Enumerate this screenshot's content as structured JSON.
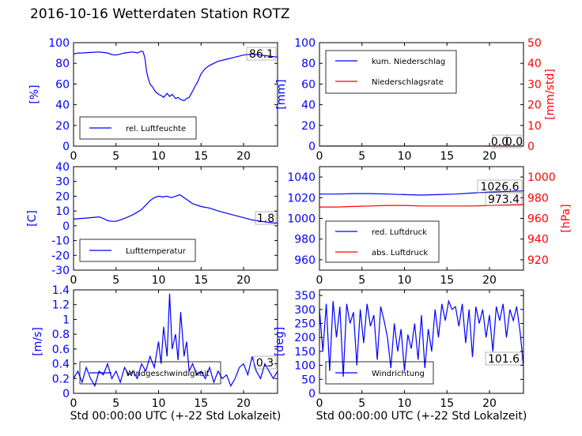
{
  "title": "2016-10-16 Wetterdaten Station ROTZ",
  "colors": {
    "blue": "#0000ff",
    "red": "#ff0000",
    "black": "#000000"
  },
  "chart_data": [
    {
      "id": "humidity",
      "type": "line",
      "ylabel": "[%]",
      "xlim": [
        0,
        24
      ],
      "ylim": [
        0,
        100
      ],
      "xticks": [
        0,
        5,
        10,
        15,
        20
      ],
      "yticks": [
        0,
        20,
        40,
        60,
        80,
        100
      ],
      "legend": "bottom-left",
      "series": [
        {
          "name": "rel. Luftfeuchte",
          "color": "#0000ff",
          "x": [
            0,
            0.5,
            1,
            2,
            3,
            4,
            4.5,
            5,
            5.5,
            6,
            6.5,
            7,
            7.5,
            8,
            8.2,
            8.4,
            8.6,
            8.8,
            9,
            9.3,
            9.6,
            10,
            10.3,
            10.6,
            11,
            11.3,
            11.6,
            12,
            12.3,
            12.6,
            13,
            13.3,
            13.6,
            14,
            14.3,
            14.6,
            15,
            15.5,
            16,
            17,
            18,
            19,
            20,
            21,
            22,
            23,
            24
          ],
          "y": [
            89,
            90,
            90,
            90.5,
            91,
            90,
            88.5,
            88,
            89,
            90,
            90.5,
            91,
            90,
            92,
            91,
            85,
            72,
            65,
            60,
            57,
            53,
            50,
            49,
            47,
            51,
            48,
            50,
            46,
            47,
            45,
            44,
            46,
            47,
            53,
            58,
            62,
            70,
            75,
            78,
            82,
            84,
            86,
            88,
            89,
            88,
            87,
            86
          ]
        }
      ],
      "annotations": [
        "86.1"
      ]
    },
    {
      "id": "precip",
      "type": "line",
      "ylabel": "[mm]",
      "y2label": "[mm/std]",
      "xlim": [
        0,
        24
      ],
      "ylim": [
        0,
        100
      ],
      "y2lim": [
        0,
        50
      ],
      "xticks": [
        0,
        5,
        10,
        15,
        20
      ],
      "yticks": [
        0,
        20,
        40,
        60,
        80,
        100
      ],
      "y2ticks": [
        0,
        10,
        20,
        30,
        40,
        50
      ],
      "legend": "top-left",
      "series": [
        {
          "name": "kum. Niederschlag",
          "color": "#0000ff",
          "axis": "left",
          "x": [
            0,
            24
          ],
          "y": [
            0,
            0
          ]
        },
        {
          "name": "Niederschlagsrate",
          "color": "#ff0000",
          "axis": "right",
          "x": [
            0,
            24
          ],
          "y": [
            0,
            0
          ]
        }
      ],
      "annotations": [
        "0.0",
        "0.0"
      ]
    },
    {
      "id": "temperature",
      "type": "line",
      "ylabel": "[C]",
      "xlim": [
        0,
        24
      ],
      "ylim": [
        -30,
        40
      ],
      "xticks": [
        0,
        5,
        10,
        15,
        20
      ],
      "yticks": [
        -30,
        -20,
        -10,
        0,
        10,
        20,
        30,
        40
      ],
      "legend": "bottom-left",
      "series": [
        {
          "name": "Lufttemperatur",
          "color": "#0000ff",
          "x": [
            0,
            1,
            2,
            3,
            3.5,
            4,
            4.5,
            5,
            5.5,
            6,
            7,
            8,
            8.5,
            9,
            9.5,
            10,
            10.5,
            11,
            11.5,
            12,
            12.5,
            13,
            13.5,
            14,
            15,
            16,
            17,
            18,
            19,
            20,
            21,
            22,
            23,
            24
          ],
          "y": [
            4.5,
            5,
            5.5,
            6,
            5,
            3.5,
            3,
            3,
            4,
            5,
            7.5,
            11,
            14,
            17,
            19,
            20,
            19.5,
            20,
            19,
            20,
            21,
            19,
            17,
            15,
            13,
            12,
            10,
            8.5,
            7,
            5.5,
            4,
            3,
            2.2,
            1.8
          ]
        }
      ],
      "annotations": [
        "1.8"
      ]
    },
    {
      "id": "pressure",
      "type": "line",
      "y2label": "[hPa]",
      "xlim": [
        0,
        24
      ],
      "ylim": [
        950,
        1050
      ],
      "y2lim": [
        910,
        1010
      ],
      "xticks": [
        0,
        5,
        10,
        15,
        20
      ],
      "yticks": [
        960,
        980,
        1000,
        1020,
        1040
      ],
      "y2ticks": [
        920,
        940,
        960,
        980,
        1000
      ],
      "legend": "bottom-left",
      "series": [
        {
          "name": "red. Luftdruck",
          "color": "#0000ff",
          "axis": "left",
          "x": [
            0,
            2,
            4,
            6,
            8,
            10,
            12,
            14,
            16,
            18,
            20,
            22,
            24
          ],
          "y": [
            1023.5,
            1023.5,
            1024,
            1024,
            1023.5,
            1023,
            1022.5,
            1023,
            1023.5,
            1024.5,
            1025.5,
            1026,
            1026.6
          ]
        },
        {
          "name": "abs. Luftdruck",
          "color": "#ff0000",
          "axis": "right",
          "x": [
            0,
            2,
            4,
            6,
            8,
            10,
            12,
            14,
            16,
            18,
            20,
            22,
            24
          ],
          "y": [
            971,
            971,
            971.5,
            972,
            972.5,
            972.5,
            972,
            972,
            972,
            972,
            972.5,
            973,
            973.4
          ]
        }
      ],
      "annotations": [
        "1026.6",
        "973.4"
      ]
    },
    {
      "id": "windspeed",
      "type": "line",
      "ylabel": "[m/s]",
      "xlabel": "Std 00:00:00 UTC (+-22 Std Lokalzeit)",
      "xlim": [
        0,
        24
      ],
      "ylim": [
        0,
        1.4
      ],
      "xticks": [
        0,
        5,
        10,
        15,
        20
      ],
      "yticks": [
        0,
        0.2,
        0.4,
        0.6,
        0.8,
        1.0,
        1.2,
        1.4
      ],
      "legend": "bottom-left",
      "series": [
        {
          "name": "Windgeschwindigkeit",
          "color": "#0000ff",
          "x": [
            0,
            0.5,
            1,
            1.5,
            2,
            2.5,
            3,
            3.5,
            4,
            4.5,
            5,
            5.5,
            6,
            6.5,
            7,
            7.5,
            8,
            8.5,
            9,
            9.5,
            10,
            10.3,
            10.6,
            11,
            11.3,
            11.6,
            12,
            12.3,
            12.6,
            13,
            13.3,
            13.6,
            14,
            14.5,
            15,
            15.5,
            16,
            16.5,
            17,
            17.5,
            18,
            18.5,
            19,
            19.5,
            20,
            20.5,
            21,
            21.5,
            22,
            22.5,
            23,
            23.5,
            24
          ],
          "y": [
            0.2,
            0.3,
            0.15,
            0.35,
            0.2,
            0.1,
            0.3,
            0.25,
            0.4,
            0.2,
            0.3,
            0.15,
            0.35,
            0.25,
            0.3,
            0.2,
            0.4,
            0.3,
            0.5,
            0.35,
            0.7,
            0.4,
            0.9,
            0.5,
            1.35,
            0.6,
            0.8,
            0.45,
            1.1,
            0.5,
            0.7,
            0.3,
            0.4,
            0.25,
            0.3,
            0.2,
            0.35,
            0.15,
            0.3,
            0.2,
            0.25,
            0.1,
            0.2,
            0.35,
            0.4,
            0.25,
            0.5,
            0.3,
            0.2,
            0.4,
            0.3,
            0.2,
            0.3
          ]
        }
      ],
      "annotations": [
        "0.3"
      ]
    },
    {
      "id": "winddir",
      "type": "line",
      "ylabel": "[deg]",
      "xlabel": "Std 00:00:00 UTC (+-22 Std Lokalzeit)",
      "xlim": [
        0,
        24
      ],
      "ylim": [
        0,
        370
      ],
      "xticks": [
        0,
        5,
        10,
        15,
        20
      ],
      "yticks": [
        0,
        50,
        100,
        150,
        200,
        250,
        300,
        350
      ],
      "legend": "bottom-left",
      "series": [
        {
          "name": "Windrichtung",
          "color": "#0000ff",
          "x": [
            0,
            0.4,
            0.8,
            1.2,
            1.6,
            2,
            2.4,
            2.8,
            3.2,
            3.6,
            4,
            4.4,
            4.8,
            5.2,
            5.6,
            6,
            6.4,
            6.8,
            7.2,
            7.6,
            8,
            8.4,
            8.8,
            9.2,
            9.6,
            10,
            10.4,
            10.8,
            11.2,
            11.6,
            12,
            12.4,
            12.8,
            13.2,
            13.6,
            14,
            14.4,
            14.8,
            15.2,
            15.6,
            16,
            16.4,
            16.8,
            17.2,
            17.6,
            18,
            18.4,
            18.8,
            19.2,
            19.6,
            20,
            20.4,
            20.8,
            21.2,
            21.6,
            22,
            22.4,
            22.8,
            23.2,
            23.6,
            24
          ],
          "y": [
            300,
            150,
            320,
            80,
            330,
            200,
            310,
            60,
            320,
            250,
            290,
            100,
            300,
            180,
            320,
            240,
            280,
            120,
            310,
            260,
            200,
            90,
            250,
            150,
            230,
            80,
            210,
            160,
            250,
            120,
            280,
            90,
            230,
            150,
            300,
            200,
            320,
            260,
            330,
            300,
            310,
            240,
            320,
            180,
            300,
            130,
            310,
            250,
            300,
            200,
            280,
            150,
            310,
            260,
            320,
            200,
            300,
            260,
            310,
            220,
            100
          ]
        }
      ],
      "annotations": [
        "101.6"
      ]
    }
  ]
}
